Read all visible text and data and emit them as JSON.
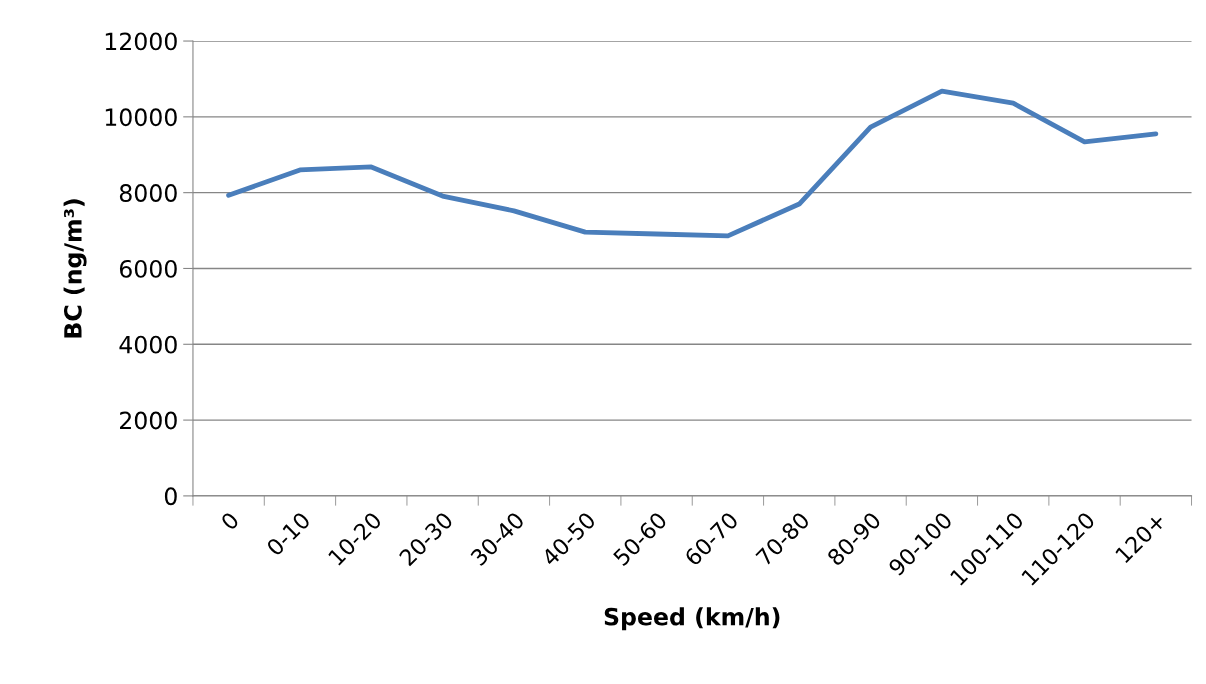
{
  "chart_data": {
    "type": "line",
    "xlabel": "Speed (km/h)",
    "ylabel": "BC (ng/m³)",
    "categories": [
      "0",
      "0-10",
      "10-20",
      "20-30",
      "30-40",
      "40-50",
      "50-60",
      "60-70",
      "70-80",
      "80-90",
      "90-100",
      "100-110",
      "110-120",
      "120+"
    ],
    "series": [
      {
        "color": "#4a7ebb",
        "values": [
          7930,
          8600,
          8680,
          7910,
          7520,
          6960,
          6910,
          6860,
          7700,
          9730,
          10680,
          10360,
          9340,
          9550
        ]
      }
    ],
    "ylim": [
      0,
      12000
    ],
    "yticks": [
      0,
      2000,
      4000,
      6000,
      8000,
      10000,
      12000
    ],
    "grid": "y",
    "legend": false,
    "marker": "none",
    "line_style": "solid"
  }
}
